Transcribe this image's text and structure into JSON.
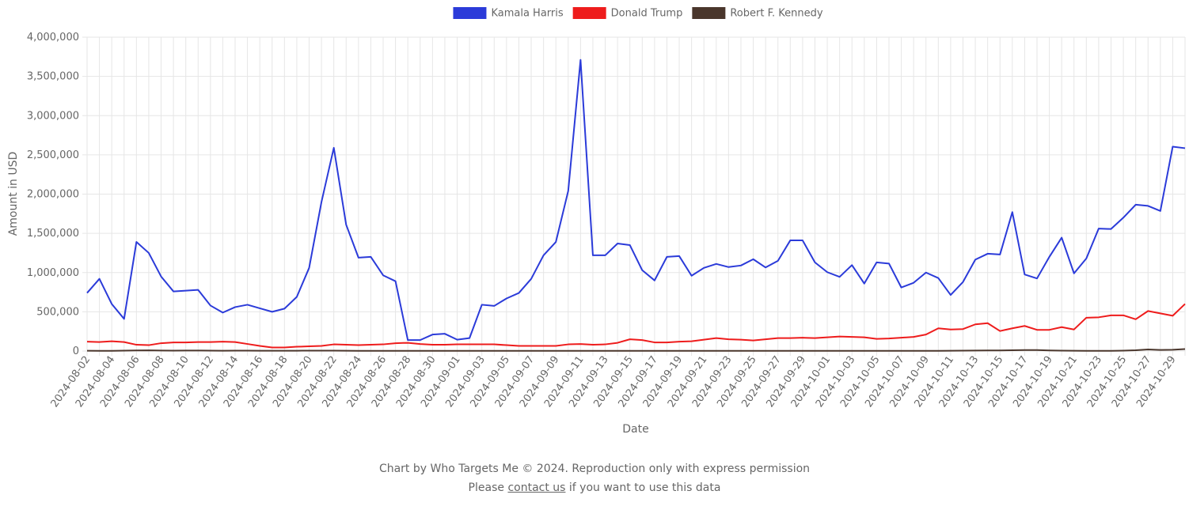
{
  "chart_data": {
    "type": "line",
    "title": "",
    "xlabel": "Date",
    "ylabel": "Amount in USD",
    "ylim": [
      0,
      4000000
    ],
    "yticks": [
      0,
      500000,
      1000000,
      1500000,
      2000000,
      2500000,
      3000000,
      3500000,
      4000000
    ],
    "ytick_labels": [
      "0",
      "500,000",
      "1,000,000",
      "1,500,000",
      "2,000,000",
      "2,500,000",
      "3,000,000",
      "3,500,000",
      "4,000,000"
    ],
    "grid": true,
    "legend_position": "top-center",
    "x": [
      "2024-08-02",
      "2024-08-03",
      "2024-08-04",
      "2024-08-05",
      "2024-08-06",
      "2024-08-07",
      "2024-08-08",
      "2024-08-09",
      "2024-08-10",
      "2024-08-11",
      "2024-08-12",
      "2024-08-13",
      "2024-08-14",
      "2024-08-15",
      "2024-08-16",
      "2024-08-17",
      "2024-08-18",
      "2024-08-19",
      "2024-08-20",
      "2024-08-21",
      "2024-08-22",
      "2024-08-23",
      "2024-08-24",
      "2024-08-25",
      "2024-08-26",
      "2024-08-27",
      "2024-08-28",
      "2024-08-29",
      "2024-08-30",
      "2024-08-31",
      "2024-09-01",
      "2024-09-02",
      "2024-09-03",
      "2024-09-04",
      "2024-09-05",
      "2024-09-06",
      "2024-09-07",
      "2024-09-08",
      "2024-09-09",
      "2024-09-10",
      "2024-09-11",
      "2024-09-12",
      "2024-09-13",
      "2024-09-14",
      "2024-09-15",
      "2024-09-16",
      "2024-09-17",
      "2024-09-18",
      "2024-09-19",
      "2024-09-20",
      "2024-09-21",
      "2024-09-22",
      "2024-09-23",
      "2024-09-24",
      "2024-09-25",
      "2024-09-26",
      "2024-09-27",
      "2024-09-28",
      "2024-09-29",
      "2024-09-30",
      "2024-10-01",
      "2024-10-02",
      "2024-10-03",
      "2024-10-04",
      "2024-10-05",
      "2024-10-06",
      "2024-10-07",
      "2024-10-08",
      "2024-10-09",
      "2024-10-10",
      "2024-10-11",
      "2024-10-12",
      "2024-10-13",
      "2024-10-14",
      "2024-10-15",
      "2024-10-16",
      "2024-10-17",
      "2024-10-18",
      "2024-10-19",
      "2024-10-20",
      "2024-10-21",
      "2024-10-22",
      "2024-10-23",
      "2024-10-24",
      "2024-10-25",
      "2024-10-26",
      "2024-10-27",
      "2024-10-28",
      "2024-10-29",
      "2024-10-30"
    ],
    "x_tick_labels": [
      "2024-08-02",
      "2024-08-04",
      "2024-08-06",
      "2024-08-08",
      "2024-08-10",
      "2024-08-12",
      "2024-08-14",
      "2024-08-16",
      "2024-08-18",
      "2024-08-20",
      "2024-08-22",
      "2024-08-24",
      "2024-08-26",
      "2024-08-28",
      "2024-08-30",
      "2024-09-01",
      "2024-09-03",
      "2024-09-05",
      "2024-09-07",
      "2024-09-09",
      "2024-09-11",
      "2024-09-13",
      "2024-09-15",
      "2024-09-17",
      "2024-09-19",
      "2024-09-21",
      "2024-09-23",
      "2024-09-25",
      "2024-09-27",
      "2024-09-29",
      "2024-10-01",
      "2024-10-03",
      "2024-10-05",
      "2024-10-07",
      "2024-10-09",
      "2024-10-11",
      "2024-10-13",
      "2024-10-15",
      "2024-10-17",
      "2024-10-19",
      "2024-10-21",
      "2024-10-23",
      "2024-10-25",
      "2024-10-27",
      "2024-10-29"
    ],
    "series": [
      {
        "name": "Kamala Harris",
        "color": "#2b3bd9",
        "values": [
          740000,
          920000,
          600000,
          410000,
          1390000,
          1250000,
          950000,
          760000,
          770000,
          780000,
          580000,
          490000,
          560000,
          590000,
          545000,
          500000,
          540000,
          690000,
          1060000,
          1900000,
          2590000,
          1610000,
          1190000,
          1200000,
          965000,
          890000,
          140000,
          140000,
          210000,
          220000,
          145000,
          165000,
          590000,
          575000,
          670000,
          740000,
          920000,
          1220000,
          1390000,
          2040000,
          3710000,
          1220000,
          1220000,
          1370000,
          1350000,
          1030000,
          900000,
          1200000,
          1210000,
          960000,
          1060000,
          1110000,
          1070000,
          1090000,
          1170000,
          1065000,
          1150000,
          1410000,
          1410000,
          1130000,
          1005000,
          945000,
          1095000,
          860000,
          1130000,
          1115000,
          810000,
          870000,
          1000000,
          930000,
          715000,
          880000,
          1165000,
          1240000,
          1230000,
          1770000,
          975000,
          925000,
          1200000,
          1445000,
          990000,
          1180000,
          1560000,
          1555000,
          1700000,
          1865000,
          1850000,
          1785000,
          2605000,
          2585000
        ]
      },
      {
        "name": "Donald Trump",
        "color": "#ee1c1c",
        "values": [
          120000,
          115000,
          125000,
          115000,
          80000,
          75000,
          100000,
          110000,
          110000,
          115000,
          115000,
          120000,
          115000,
          90000,
          65000,
          45000,
          45000,
          55000,
          60000,
          65000,
          85000,
          80000,
          75000,
          80000,
          85000,
          100000,
          105000,
          90000,
          80000,
          80000,
          85000,
          85000,
          85000,
          85000,
          75000,
          65000,
          65000,
          65000,
          65000,
          85000,
          90000,
          80000,
          85000,
          105000,
          150000,
          140000,
          110000,
          110000,
          120000,
          125000,
          145000,
          165000,
          150000,
          145000,
          135000,
          150000,
          165000,
          165000,
          170000,
          165000,
          175000,
          185000,
          180000,
          175000,
          155000,
          160000,
          170000,
          180000,
          210000,
          290000,
          275000,
          280000,
          340000,
          355000,
          255000,
          290000,
          320000,
          270000,
          270000,
          305000,
          275000,
          425000,
          430000,
          455000,
          455000,
          405000,
          510000,
          480000,
          450000,
          600000
        ]
      },
      {
        "name": "Robert F. Kennedy",
        "color": "#4a362c",
        "values": [
          4000,
          3000,
          3000,
          5000,
          8000,
          9000,
          6000,
          5000,
          6000,
          6000,
          5000,
          4000,
          5000,
          5000,
          4000,
          4000,
          4000,
          4000,
          5000,
          5000,
          5000,
          4000,
          3000,
          3000,
          3000,
          3000,
          3000,
          2000,
          2000,
          2000,
          2000,
          2000,
          2000,
          2000,
          2000,
          2000,
          2000,
          2000,
          2000,
          2000,
          2000,
          2000,
          2000,
          2000,
          2000,
          2000,
          2000,
          2000,
          2000,
          2000,
          2000,
          2000,
          2000,
          2000,
          2000,
          2000,
          2000,
          2000,
          2000,
          2000,
          2000,
          2000,
          2000,
          2000,
          2000,
          2000,
          2000,
          2000,
          2000,
          3000,
          4000,
          5000,
          6000,
          7000,
          8000,
          10000,
          12000,
          12000,
          8000,
          5000,
          4000,
          3000,
          3000,
          3000,
          5000,
          10000,
          20000,
          14000,
          16000,
          25000
        ]
      }
    ]
  },
  "footer": {
    "credit": "Chart by Who Targets Me © 2024. Reproduction only with express permission",
    "contact_prefix": "Please ",
    "contact_link": "contact us",
    "contact_suffix": " if you want to use this data"
  }
}
